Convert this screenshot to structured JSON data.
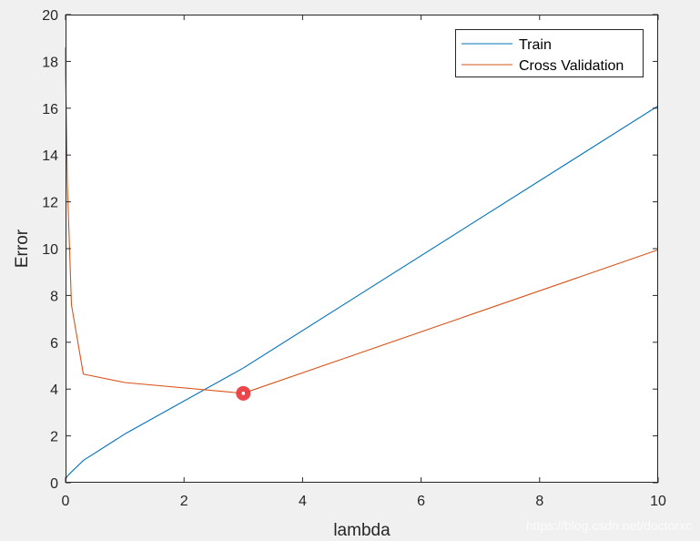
{
  "chart_data": {
    "type": "line",
    "xlabel": "lambda",
    "ylabel": "Error",
    "xlim": [
      0,
      10
    ],
    "ylim": [
      0,
      20
    ],
    "xticks": [
      0,
      2,
      4,
      6,
      8,
      10
    ],
    "yticks": [
      0,
      2,
      4,
      6,
      8,
      10,
      12,
      14,
      16,
      18,
      20
    ],
    "grid": false,
    "legend_position": "top-right",
    "series": [
      {
        "name": "Train",
        "color": "#0072BD",
        "x": [
          0,
          0.001,
          0.003,
          0.01,
          0.03,
          0.1,
          0.3,
          1,
          3,
          10
        ],
        "y": [
          0.17,
          0.17,
          0.17,
          0.19,
          0.28,
          0.46,
          0.95,
          2.08,
          4.9,
          16.1
        ]
      },
      {
        "name": "Cross Validation",
        "color": "#D95319",
        "x": [
          0,
          0.001,
          0.003,
          0.01,
          0.03,
          0.1,
          0.3,
          1,
          3,
          10
        ],
        "y": [
          18.6,
          17.5,
          17.2,
          16.3,
          12.8,
          7.6,
          4.64,
          4.28,
          3.82,
          9.95
        ]
      }
    ],
    "annotations": [
      {
        "type": "marker",
        "x": 3,
        "y": 3.82,
        "color": "#E8383D"
      }
    ]
  },
  "watermark": "https://blog.csdn.net/doctorxc"
}
